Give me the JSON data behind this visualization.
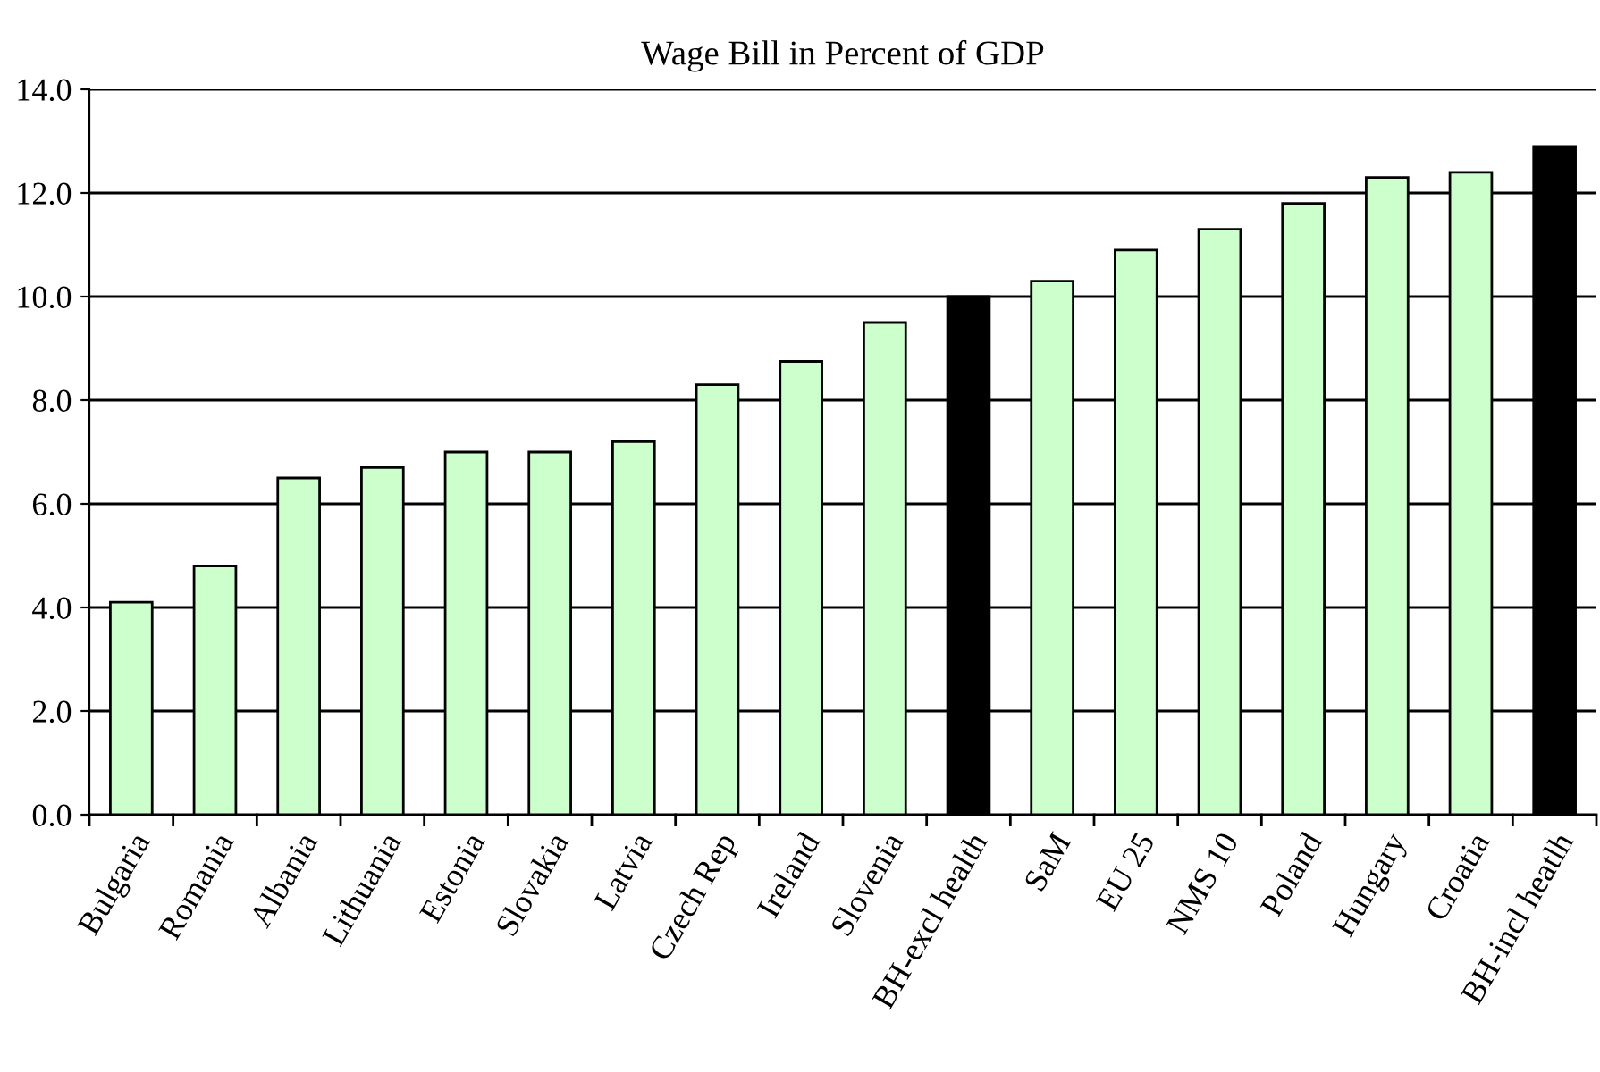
{
  "chart_data": {
    "type": "bar",
    "title": "Wage Bill in Percent of GDP",
    "categories": [
      "Bulgaria",
      "Romania",
      "Albania",
      "Lithuania",
      "Estonia",
      "Slovakia",
      "Latvia",
      "Czech Rep",
      "Ireland",
      "Slovenia",
      "BH-excl health",
      "SaM",
      "EU 25",
      "NMS 10",
      "Poland",
      "Hungary",
      "Croatia",
      "BH-incl heatlh"
    ],
    "values": [
      4.1,
      4.8,
      6.5,
      6.7,
      7.0,
      7.0,
      7.2,
      8.3,
      8.75,
      9.5,
      10.0,
      10.3,
      10.9,
      11.3,
      11.8,
      12.3,
      12.4,
      12.9
    ],
    "colors": [
      "#ccffcc",
      "#ccffcc",
      "#ccffcc",
      "#ccffcc",
      "#ccffcc",
      "#ccffcc",
      "#ccffcc",
      "#ccffcc",
      "#ccffcc",
      "#ccffcc",
      "#000000",
      "#ccffcc",
      "#ccffcc",
      "#ccffcc",
      "#ccffcc",
      "#ccffcc",
      "#ccffcc",
      "#000000"
    ],
    "ylim": [
      0,
      14
    ],
    "yticks": [
      {
        "value": 0,
        "label": "0.0"
      },
      {
        "value": 2,
        "label": "2.0"
      },
      {
        "value": 4,
        "label": "4.0"
      },
      {
        "value": 6,
        "label": "6.0"
      },
      {
        "value": 8,
        "label": "8.0"
      },
      {
        "value": 10,
        "label": "10.0"
      },
      {
        "value": 12,
        "label": "12.0"
      },
      {
        "value": 14,
        "label": "14.0"
      }
    ],
    "grid": "y",
    "legend": false
  }
}
